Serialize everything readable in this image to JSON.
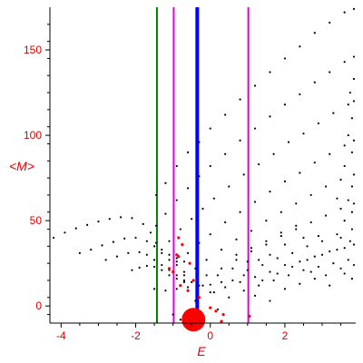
{
  "chart_data": {
    "type": "scatter",
    "title": "",
    "xlabel": "E",
    "ylabel": "<M>",
    "xlim": [
      -4.3,
      3.9
    ],
    "ylim": [
      -10,
      175
    ],
    "xticks": [
      -4,
      -2,
      0,
      2
    ],
    "yticks": [
      0,
      50,
      100,
      150
    ],
    "xtick_labels": [
      "-4",
      "-2",
      "0",
      "2"
    ],
    "ytick_labels": [
      "0",
      "50",
      "100",
      "150"
    ],
    "grid": false,
    "vlines": [
      {
        "x": -1.43,
        "color": "#008000"
      },
      {
        "x": -0.98,
        "color": "#e000e0"
      },
      {
        "x": -0.35,
        "color": "#0000ff"
      },
      {
        "x": 1.02,
        "color": "#e000e0"
      }
    ],
    "series": [
      {
        "color": "#000000",
        "values": [
          [
            -4.2,
            40
          ],
          [
            -3.9,
            43
          ],
          [
            -3.6,
            45.5
          ],
          [
            -3.3,
            47.5
          ],
          [
            -3.0,
            49.5
          ],
          [
            -2.7,
            51
          ],
          [
            -2.4,
            52
          ],
          [
            -2.1,
            51.5
          ],
          [
            -1.8,
            48
          ],
          [
            -1.6,
            43
          ],
          [
            -1.45,
            37
          ],
          [
            -1.3,
            33
          ],
          [
            -1.1,
            30
          ],
          [
            -0.9,
            28
          ],
          [
            -0.7,
            26
          ]
        ]
      },
      {
        "color": "#000000",
        "values": [
          [
            -3.5,
            31
          ],
          [
            -3.2,
            33
          ],
          [
            -2.9,
            35.5
          ],
          [
            -2.6,
            37.5
          ],
          [
            -2.3,
            39.5
          ],
          [
            -2.0,
            40
          ],
          [
            -1.7,
            38
          ],
          [
            -1.5,
            35
          ],
          [
            -1.3,
            31
          ],
          [
            -1.1,
            27
          ],
          [
            -0.9,
            24
          ],
          [
            -0.7,
            20
          ]
        ]
      },
      {
        "color": "#000000",
        "values": [
          [
            -2.8,
            27
          ],
          [
            -2.5,
            29
          ],
          [
            -2.2,
            31
          ],
          [
            -1.9,
            31.5
          ],
          [
            -1.7,
            30
          ],
          [
            -1.5,
            27
          ],
          [
            -1.3,
            24
          ],
          [
            -1.1,
            21
          ],
          [
            -0.9,
            18
          ],
          [
            -0.7,
            15
          ]
        ]
      },
      {
        "color": "#000000",
        "values": [
          [
            -2.1,
            21
          ],
          [
            -1.9,
            22.5
          ],
          [
            -1.7,
            23.5
          ],
          [
            -1.5,
            23
          ],
          [
            -1.3,
            21
          ],
          [
            -1.1,
            18
          ],
          [
            -0.9,
            16
          ],
          [
            -0.7,
            14
          ]
        ]
      },
      {
        "color": "#000000",
        "values": [
          [
            -1.5,
            10
          ],
          [
            -1.2,
            9
          ],
          [
            -0.9,
            10
          ],
          [
            -0.6,
            11
          ],
          [
            -0.3,
            12
          ],
          [
            0,
            12.5
          ],
          [
            0.3,
            14
          ],
          [
            0.6,
            15
          ]
        ]
      },
      {
        "color": "#000000",
        "values": [
          [
            -1.45,
            65
          ],
          [
            -1.2,
            72
          ],
          [
            -0.9,
            82
          ],
          [
            -0.6,
            90
          ],
          [
            -0.3,
            96
          ],
          [
            0,
            104
          ],
          [
            0.4,
            112
          ],
          [
            0.8,
            121
          ],
          [
            1.2,
            129
          ],
          [
            1.6,
            137
          ],
          [
            2.0,
            145
          ],
          [
            2.4,
            152
          ],
          [
            2.8,
            160
          ],
          [
            3.2,
            166
          ],
          [
            3.6,
            172
          ],
          [
            3.85,
            174
          ]
        ]
      },
      {
        "color": "#000000",
        "values": [
          [
            -1.45,
            47
          ],
          [
            -1.2,
            54
          ],
          [
            -0.9,
            62
          ],
          [
            -0.6,
            69
          ],
          [
            -0.3,
            76
          ],
          [
            0,
            82
          ],
          [
            0.4,
            89
          ],
          [
            0.8,
            97
          ],
          [
            1.2,
            104
          ],
          [
            1.6,
            111
          ],
          [
            2.0,
            118
          ],
          [
            2.4,
            124
          ],
          [
            2.8,
            131
          ],
          [
            3.2,
            137
          ],
          [
            3.6,
            143
          ],
          [
            3.85,
            146
          ]
        ]
      },
      {
        "color": "#000000",
        "values": [
          [
            -1.1,
            38
          ],
          [
            -0.8,
            45
          ],
          [
            -0.5,
            51
          ],
          [
            -0.2,
            57
          ],
          [
            0.1,
            63
          ],
          [
            0.5,
            70
          ],
          [
            0.9,
            77
          ],
          [
            1.3,
            83
          ],
          [
            1.7,
            89
          ],
          [
            2.1,
            96
          ],
          [
            2.5,
            101
          ],
          [
            2.9,
            107
          ],
          [
            3.3,
            113
          ],
          [
            3.7,
            118
          ],
          [
            3.85,
            120
          ]
        ]
      },
      {
        "color": "#000000",
        "values": [
          [
            -0.9,
            26
          ],
          [
            -0.6,
            31
          ],
          [
            -0.3,
            37
          ],
          [
            0,
            42
          ],
          [
            0.4,
            49
          ],
          [
            0.8,
            55
          ],
          [
            1.2,
            61
          ],
          [
            1.6,
            67
          ],
          [
            2.0,
            73
          ],
          [
            2.4,
            78
          ],
          [
            2.8,
            84
          ],
          [
            3.2,
            89
          ],
          [
            3.6,
            94
          ],
          [
            3.85,
            97
          ]
        ]
      },
      {
        "color": "#000000",
        "values": [
          [
            -0.7,
            18
          ],
          [
            -0.4,
            22
          ],
          [
            -0.1,
            27
          ],
          [
            0.3,
            33
          ],
          [
            0.7,
            39
          ],
          [
            1.1,
            44
          ],
          [
            1.5,
            50
          ],
          [
            1.9,
            55
          ],
          [
            2.3,
            60
          ],
          [
            2.7,
            65
          ],
          [
            3.1,
            70
          ],
          [
            3.5,
            74
          ],
          [
            3.85,
            77
          ]
        ]
      },
      {
        "color": "#000000",
        "values": [
          [
            -0.5,
            14
          ],
          [
            -0.1,
            18
          ],
          [
            0.3,
            22
          ],
          [
            0.7,
            27
          ],
          [
            1.1,
            32
          ],
          [
            1.5,
            36
          ],
          [
            1.9,
            41
          ],
          [
            2.3,
            45
          ],
          [
            2.7,
            49
          ],
          [
            3.1,
            53
          ],
          [
            3.5,
            57
          ],
          [
            3.85,
            60
          ]
        ]
      },
      {
        "color": "#000000",
        "values": [
          [
            0.1,
            8
          ],
          [
            0.4,
            11
          ],
          [
            0.8,
            14
          ],
          [
            1.2,
            17
          ],
          [
            1.6,
            20
          ],
          [
            2.0,
            24
          ],
          [
            2.4,
            26
          ],
          [
            2.8,
            29
          ],
          [
            3.2,
            32
          ],
          [
            3.6,
            34
          ],
          [
            3.85,
            36
          ],
          [
            0.5,
            5
          ],
          [
            0.9,
            9
          ],
          [
            1.3,
            12
          ],
          [
            1.7,
            15
          ],
          [
            2.1,
            18
          ],
          [
            2.5,
            21
          ],
          [
            2.9,
            23
          ],
          [
            3.3,
            25
          ],
          [
            3.7,
            27
          ],
          [
            1.0,
            21
          ],
          [
            1.4,
            24
          ],
          [
            1.8,
            28
          ],
          [
            2.2,
            31
          ],
          [
            2.6,
            35
          ],
          [
            3.0,
            38
          ],
          [
            3.4,
            42
          ],
          [
            3.8,
            45
          ],
          [
            0.7,
            30
          ],
          [
            1.1,
            34
          ],
          [
            1.5,
            38
          ],
          [
            1.9,
            43
          ],
          [
            2.3,
            47
          ],
          [
            2.7,
            20
          ],
          [
            3.1,
            18
          ],
          [
            3.5,
            22
          ],
          [
            3.8,
            16
          ],
          [
            1.2,
            6
          ],
          [
            1.6,
            3
          ],
          [
            2.0,
            10
          ],
          [
            2.4,
            13
          ],
          [
            2.8,
            16
          ],
          [
            3.2,
            12
          ],
          [
            3.6,
            19
          ],
          [
            3.85,
            24
          ],
          [
            0.2,
            18
          ],
          [
            0.6,
            22
          ],
          [
            1.0,
            26
          ],
          [
            1.4,
            15
          ],
          [
            1.8,
            19
          ],
          [
            2.2,
            23
          ],
          [
            2.6,
            27
          ],
          [
            3.0,
            30
          ],
          [
            3.4,
            33
          ],
          [
            3.75,
            38
          ],
          [
            3.8,
            55
          ],
          [
            3.7,
            62
          ],
          [
            3.8,
            70
          ],
          [
            3.6,
            82
          ],
          [
            3.8,
            90
          ],
          [
            3.7,
            100
          ],
          [
            3.8,
            110
          ],
          [
            3.75,
            125
          ],
          [
            3.85,
            133
          ],
          [
            3.6,
            50
          ],
          [
            3.4,
            63
          ],
          [
            3.5,
            40
          ],
          [
            2.9,
            41
          ],
          [
            2.5,
            40
          ],
          [
            2.0,
            36
          ],
          [
            1.6,
            30
          ],
          [
            1.3,
            27
          ],
          [
            0.9,
            18
          ],
          [
            0.0,
            8
          ],
          [
            -0.2,
            12
          ],
          [
            -0.8,
            -8
          ],
          [
            -1.0,
            -5
          ],
          [
            -0.4,
            3
          ],
          [
            0.2,
            -2
          ]
        ]
      }
    ],
    "red_points": [
      {
        "x": -1.1,
        "y": 22
      },
      {
        "x": -1.0,
        "y": 20
      },
      {
        "x": -0.85,
        "y": 29
      },
      {
        "x": -0.85,
        "y": 40
      },
      {
        "x": -0.75,
        "y": 36
      },
      {
        "x": -0.8,
        "y": 12
      },
      {
        "x": -0.55,
        "y": 25
      },
      {
        "x": -0.6,
        "y": 9
      },
      {
        "x": -0.9,
        "y": 30
      },
      {
        "x": 0.15,
        "y": -3
      },
      {
        "x": 0.35,
        "y": -5
      },
      {
        "x": 0.3,
        "y": -9
      },
      {
        "x": -0.3,
        "y": 5
      },
      {
        "x": 1.05,
        "y": -6
      },
      {
        "x": 0.0,
        "y": -1
      },
      {
        "x": -0.45,
        "y": 15
      }
    ],
    "red_disk": {
      "x": -0.45,
      "y": -8,
      "r": 13
    }
  }
}
